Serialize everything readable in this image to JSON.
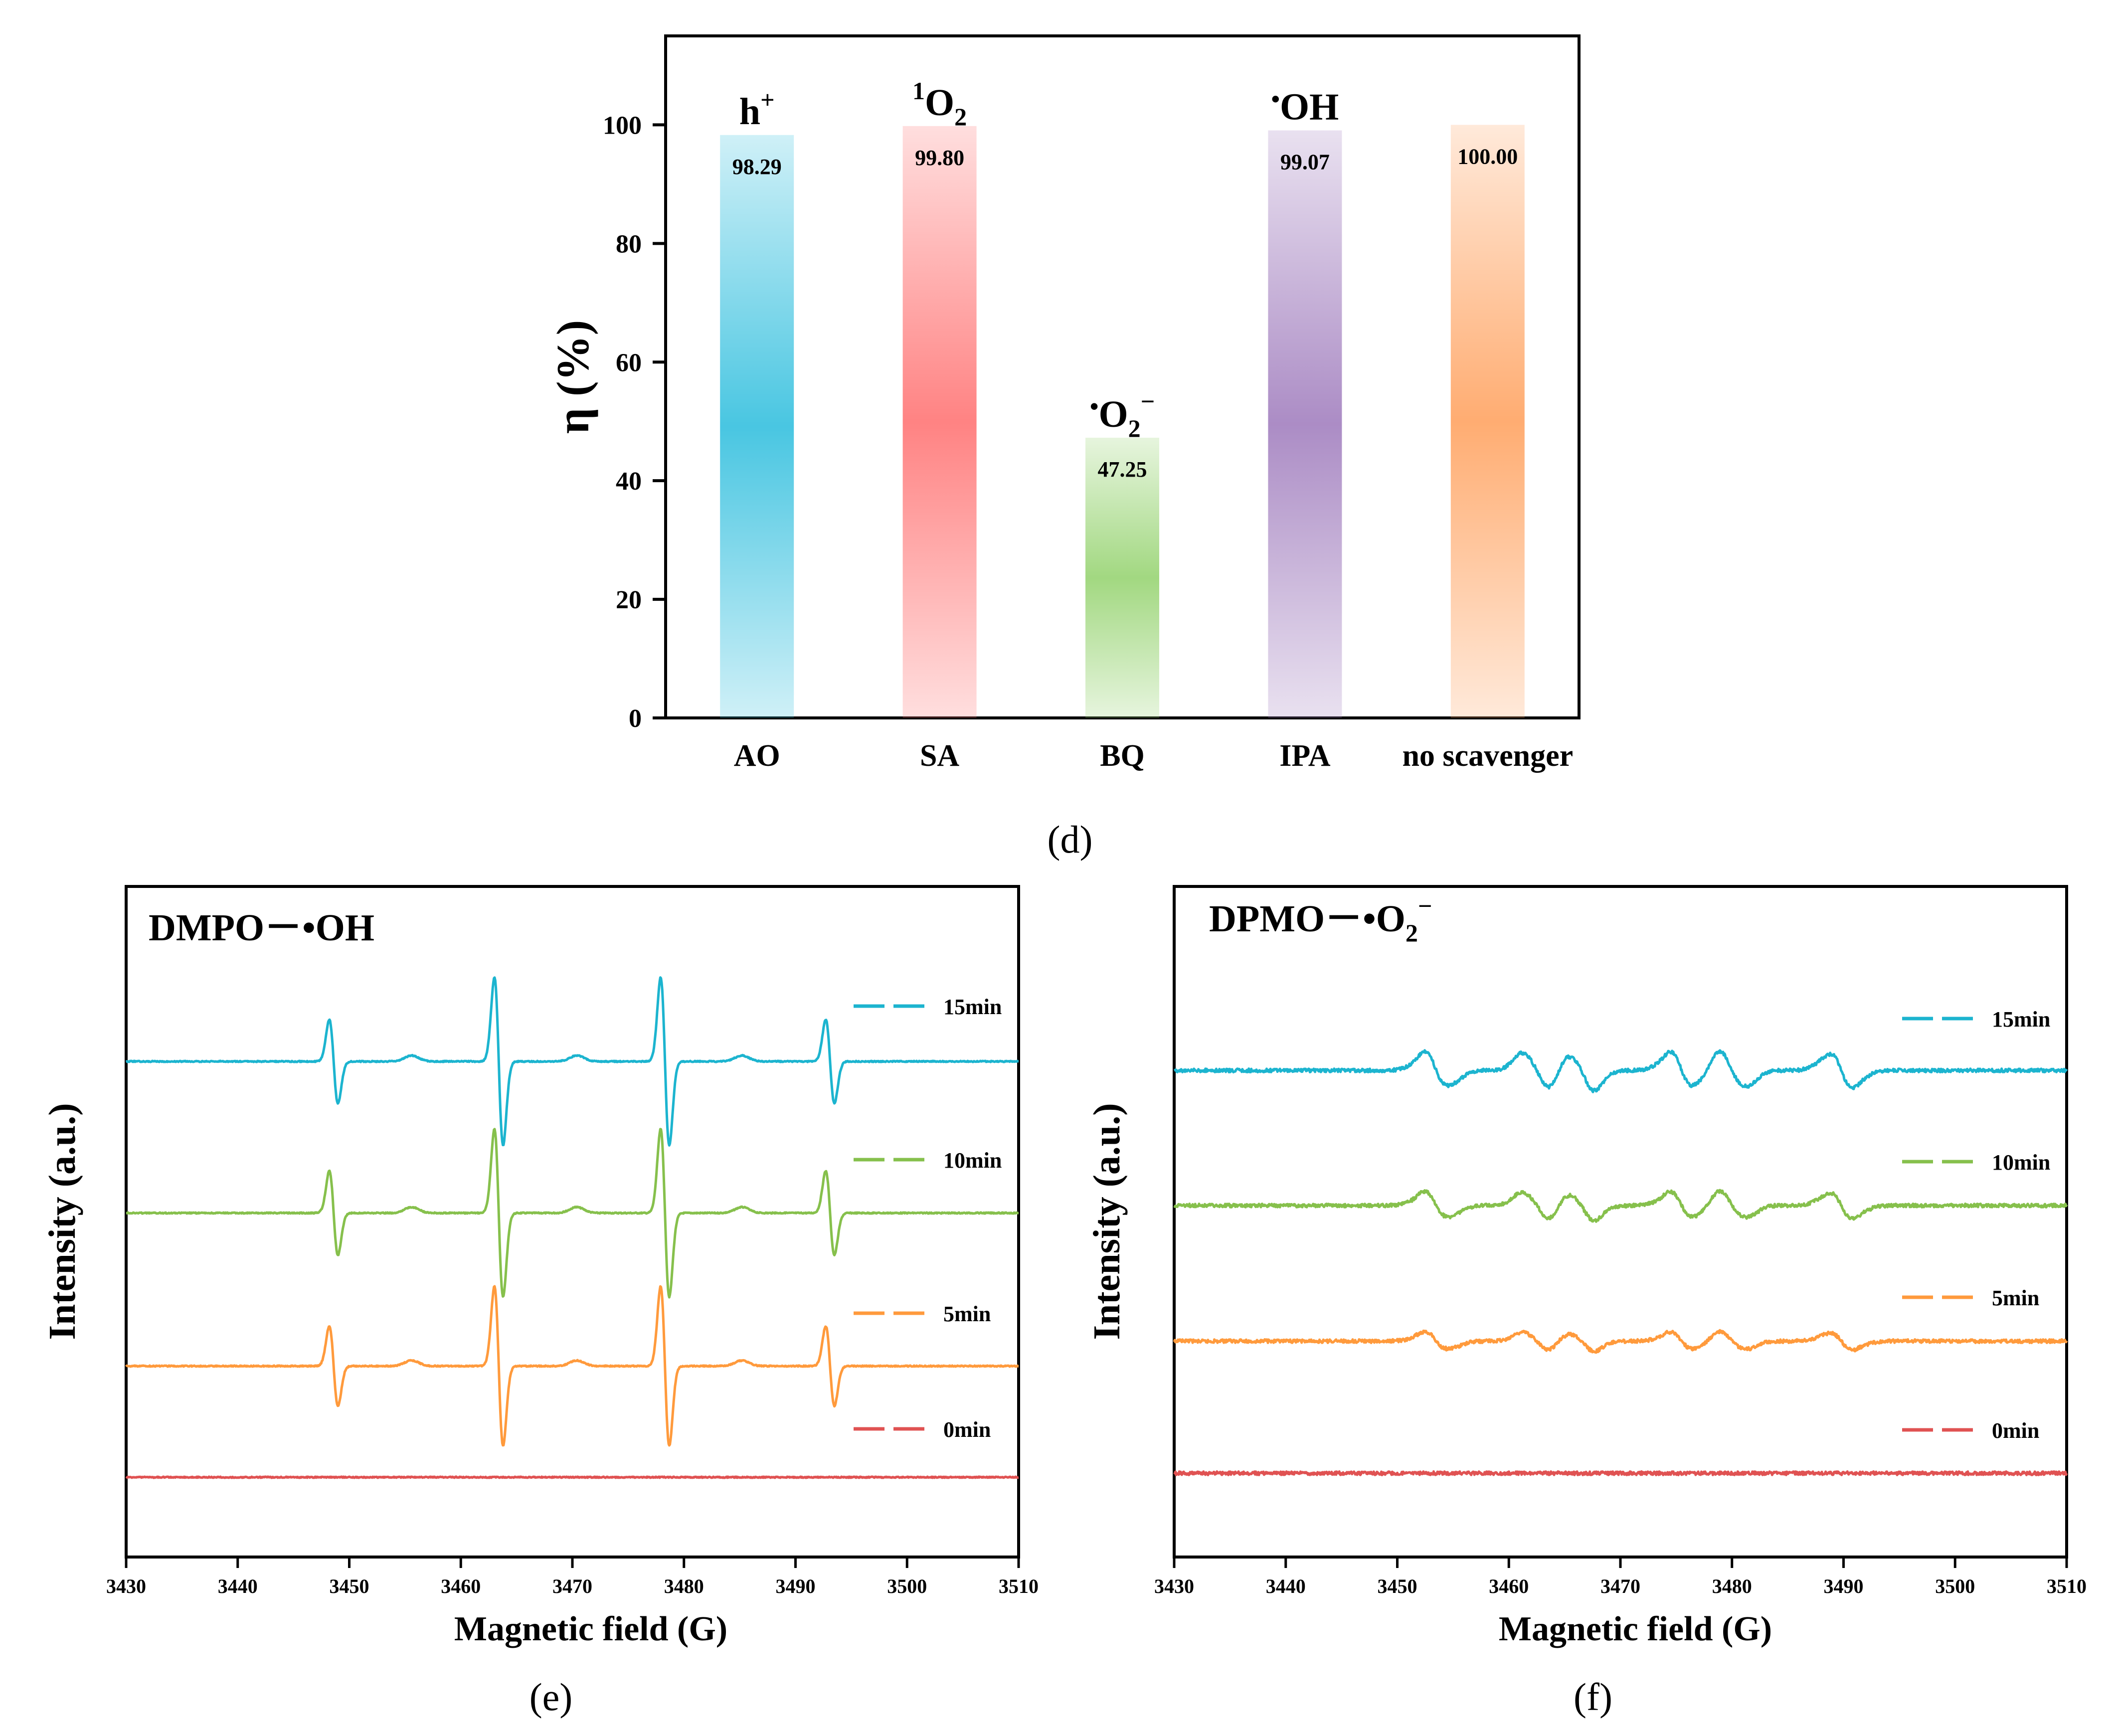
{
  "chart_data": [
    {
      "panel": "(d)",
      "type": "bar",
      "ylabel": "η (%)",
      "ylim": [
        0,
        115
      ],
      "yticks": [
        0,
        20,
        40,
        60,
        80,
        100
      ],
      "categories": [
        "AO",
        "SA",
        "BQ",
        "IPA",
        "no scavenger"
      ],
      "values": [
        98.29,
        99.8,
        47.25,
        99.07,
        100.0
      ],
      "value_labels": [
        "98.29",
        "99.80",
        "47.25",
        "99.07",
        "100.00"
      ],
      "species": [
        {
          "base": "h",
          "sup": "+",
          "sub": ""
        },
        {
          "pre": "1",
          "base": "O",
          "sub": "2"
        },
        {
          "dot": "•",
          "base": "O",
          "sub": "2",
          "sup": "−"
        },
        {
          "dot": "•",
          "base": "OH"
        },
        null
      ],
      "colors": [
        "#3fc3e0",
        "#ff7c7c",
        "#9dd67a",
        "#a786c2",
        "#ffa86a"
      ],
      "species_colors": [
        "#12a7d0",
        "#e0424a",
        "#7ccc5a",
        "#8c63ad"
      ]
    },
    {
      "panel": "(e)",
      "type": "line",
      "title": "DMPO－•OH",
      "xlabel": "Magnetic field (G)",
      "ylabel": "Intensity (a.u.)",
      "xlim": [
        3430,
        3510
      ],
      "xticks": [
        3430,
        3440,
        3450,
        3460,
        3470,
        3480,
        3490,
        3500,
        3510
      ],
      "peaks": [
        3448.6,
        3463.4,
        3478.3,
        3493.1
      ],
      "peak_ratio": [
        1,
        2,
        2,
        1
      ],
      "series": [
        {
          "name": "15min",
          "amplitude": 1.0,
          "color": "#1cb4cf"
        },
        {
          "name": "10min",
          "amplitude": 1.0,
          "color": "#86c04c"
        },
        {
          "name": "5min",
          "amplitude": 0.95,
          "color": "#ff9a3c"
        },
        {
          "name": "0min",
          "amplitude": 0.0,
          "color": "#e05252"
        }
      ]
    },
    {
      "panel": "(f)",
      "type": "line",
      "title": "DPMO－•O2−",
      "title_parts": {
        "main": "DPMO－•O",
        "sub": "2",
        "sup": "−"
      },
      "xlabel": "Magnetic field (G)",
      "ylabel": "Intensity (a.u.)",
      "xlim": [
        3430,
        3510
      ],
      "xticks": [
        3430,
        3440,
        3450,
        3460,
        3470,
        3480,
        3490,
        3500,
        3510
      ],
      "peaks": [
        3453.5,
        3462.5,
        3466.5,
        3475.5,
        3480.0,
        3489.8
      ],
      "series": [
        {
          "name": "15min",
          "amplitude": 1.0,
          "color": "#1cb4cf"
        },
        {
          "name": "10min",
          "amplitude": 0.75,
          "color": "#86c04c"
        },
        {
          "name": "5min",
          "amplitude": 0.5,
          "color": "#ff9a3c"
        },
        {
          "name": "0min",
          "amplitude": 0.0,
          "color": "#e05252"
        }
      ]
    }
  ],
  "captions": {
    "d": "(d)",
    "e": "(e)",
    "f": "(f)"
  }
}
